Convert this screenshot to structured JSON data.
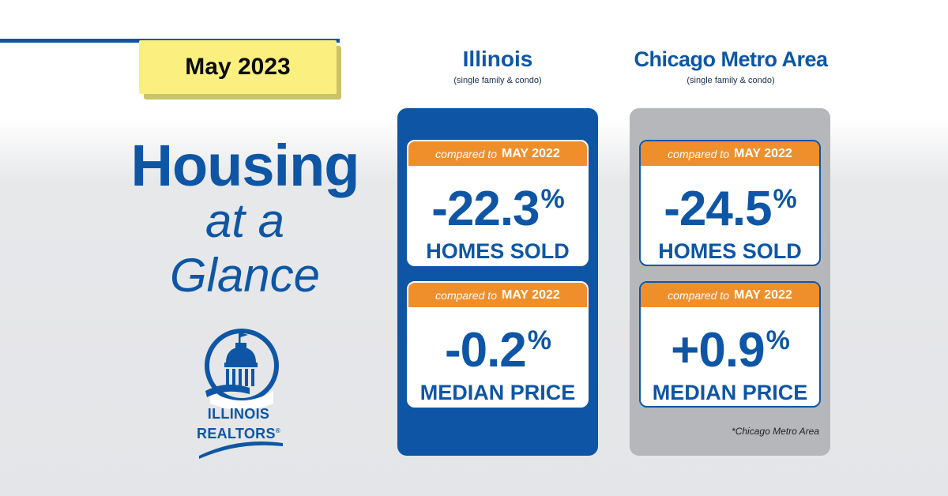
{
  "date_badge": "May 2023",
  "title": {
    "line1": "Housing",
    "line2": "at a",
    "line3": "Glance"
  },
  "logo": {
    "line1": "ILLINOIS",
    "line2": "REALTORS",
    "mark": "®"
  },
  "columns": [
    {
      "name": "Illinois",
      "subtitle": "(single family & condo)",
      "cards": [
        {
          "compared_prefix": "compared to",
          "compared_period": "MAY 2022",
          "value": "-22.3",
          "unit": "%",
          "label": "HOMES SOLD"
        },
        {
          "compared_prefix": "compared to",
          "compared_period": "MAY 2022",
          "value": "-0.2",
          "unit": "%",
          "label": "MEDIAN PRICE"
        }
      ]
    },
    {
      "name": "Chicago Metro Area",
      "subtitle": "(single family & condo)",
      "cards": [
        {
          "compared_prefix": "compared to",
          "compared_period": "MAY 2022",
          "value": "-24.5",
          "unit": "%",
          "label": "HOMES SOLD"
        },
        {
          "compared_prefix": "compared to",
          "compared_period": "MAY 2022",
          "value": "+0.9",
          "unit": "%",
          "label": "MEDIAN PRICE"
        }
      ],
      "footnote": "*Chicago Metro Area"
    }
  ],
  "colors": {
    "brand_blue": "#0e56a5",
    "accent_orange": "#ef8f2c",
    "badge_yellow": "#fbf07f",
    "panel_gray": "#b6b7ba"
  }
}
